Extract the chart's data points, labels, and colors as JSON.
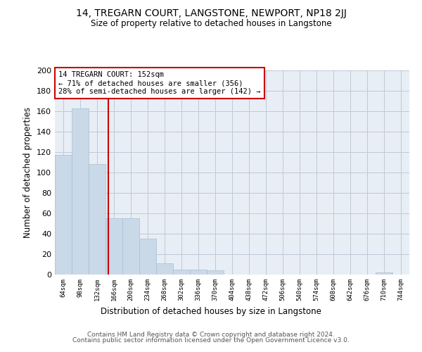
{
  "title": "14, TREGARN COURT, LANGSTONE, NEWPORT, NP18 2JJ",
  "subtitle": "Size of property relative to detached houses in Langstone",
  "xlabel": "Distribution of detached houses by size in Langstone",
  "ylabel": "Number of detached properties",
  "bar_color": "#c9d9e8",
  "bar_edge_color": "#a8bfcf",
  "grid_color": "#c0c8d8",
  "background_color": "#e8eef5",
  "annotation_line_color": "#cc0000",
  "annotation_box_color": "#cc0000",
  "annotation_line1": "14 TREGARN COURT: 152sqm",
  "annotation_line2": "← 71% of detached houses are smaller (356)",
  "annotation_line3": "28% of semi-detached houses are larger (142) →",
  "footer1": "Contains HM Land Registry data © Crown copyright and database right 2024.",
  "footer2": "Contains public sector information licensed under the Open Government Licence v3.0.",
  "bin_labels": [
    "64sqm",
    "98sqm",
    "132sqm",
    "166sqm",
    "200sqm",
    "234sqm",
    "268sqm",
    "302sqm",
    "336sqm",
    "370sqm",
    "404sqm",
    "438sqm",
    "472sqm",
    "506sqm",
    "540sqm",
    "574sqm",
    "608sqm",
    "642sqm",
    "676sqm",
    "710sqm",
    "744sqm"
  ],
  "bar_heights": [
    117,
    163,
    108,
    55,
    55,
    35,
    11,
    5,
    5,
    4,
    0,
    0,
    0,
    0,
    0,
    0,
    0,
    0,
    0,
    2,
    0
  ],
  "ylim": [
    0,
    200
  ],
  "yticks": [
    0,
    20,
    40,
    60,
    80,
    100,
    120,
    140,
    160,
    180,
    200
  ],
  "vline_x": 2.67
}
